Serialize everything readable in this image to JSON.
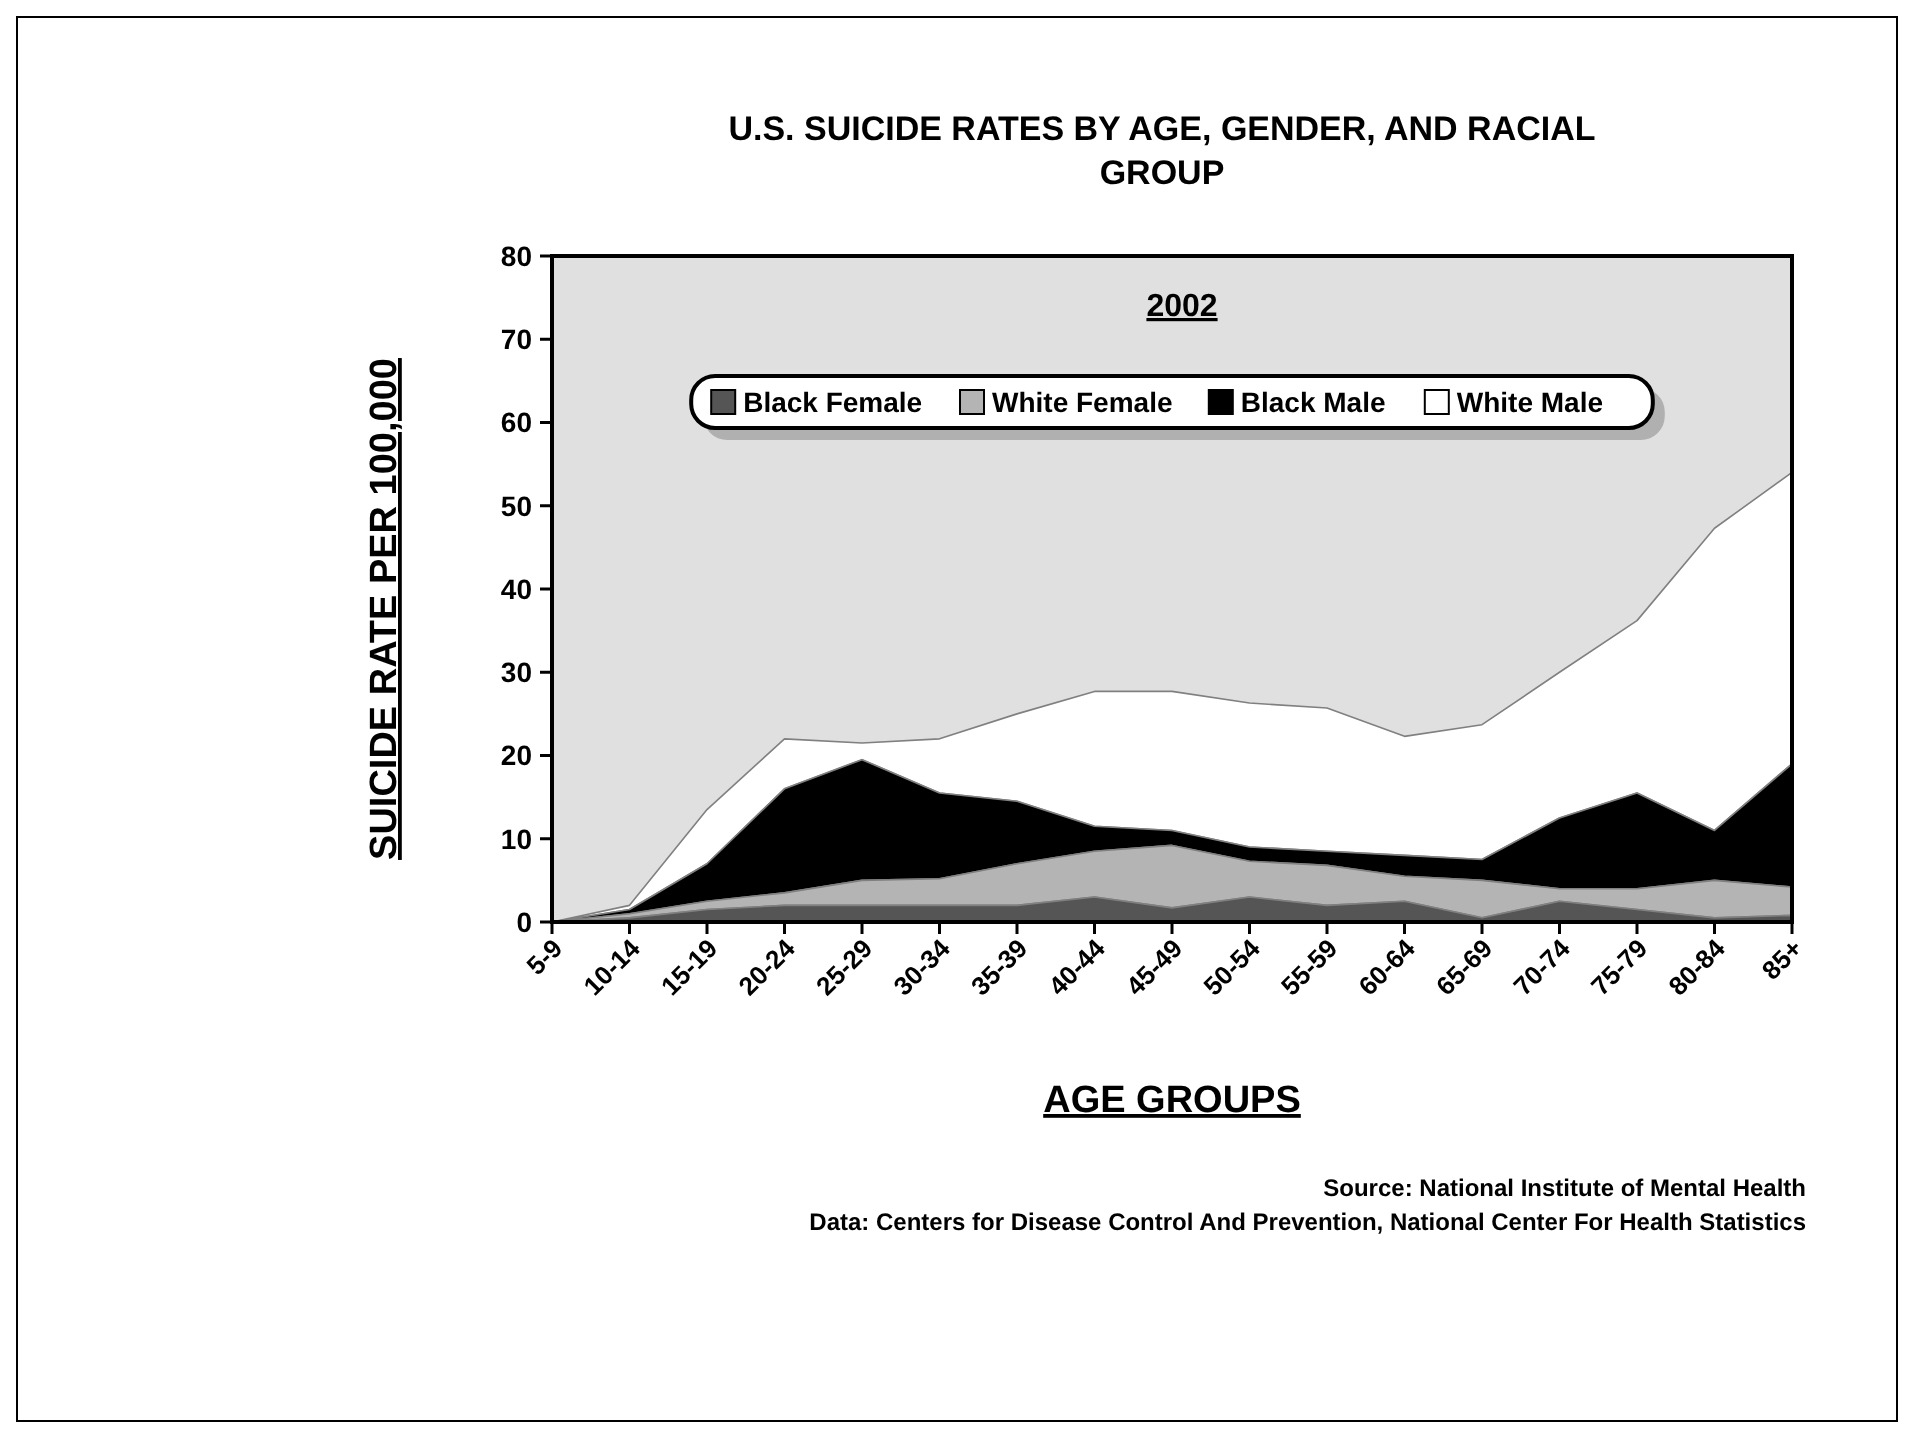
{
  "chart_data": {
    "type": "area",
    "title": "U.S. SUICIDE RATES BY AGE, GENDER, AND RACIAL GROUP",
    "subtitle": "2002",
    "xlabel": "AGE GROUPS",
    "ylabel": "SUICIDE RATE PER 100,000",
    "categories": [
      "5-9",
      "10-14",
      "15-19",
      "20-24",
      "25-29",
      "30-34",
      "35-39",
      "40-44",
      "45-49",
      "50-54",
      "55-59",
      "60-64",
      "65-69",
      "70-74",
      "75-79",
      "80-84",
      "85+"
    ],
    "stacked": true,
    "ylim": [
      0,
      80
    ],
    "yticks": [
      0,
      10,
      20,
      30,
      40,
      50,
      60,
      70,
      80
    ],
    "grid": false,
    "legend": "top",
    "series": [
      {
        "name": "Black Female",
        "color": "#555555",
        "values": [
          0,
          0.5,
          1.5,
          2,
          2,
          2,
          2,
          3,
          1.7,
          3,
          2,
          2.5,
          0.5,
          2.5,
          1.5,
          0.5,
          0.8
        ]
      },
      {
        "name": "White Female",
        "color": "#b4b4b4",
        "values": [
          0,
          0.5,
          1,
          1.5,
          3,
          3.2,
          5,
          5.5,
          7.5,
          4.3,
          4.8,
          3,
          4.5,
          1.5,
          2.5,
          4.5,
          3.4
        ]
      },
      {
        "name": "Black Male",
        "color": "#000000",
        "values": [
          0,
          0.5,
          4.5,
          12.5,
          14.5,
          10.3,
          7.5,
          3,
          1.8,
          1.7,
          1.7,
          2.5,
          2.5,
          8.5,
          11.5,
          6,
          14.8
        ]
      },
      {
        "name": "White Male",
        "color": "#ffffff",
        "values": [
          0,
          0.5,
          6.5,
          6,
          2,
          6.5,
          10.5,
          16.2,
          16.7,
          17.3,
          17.2,
          14.3,
          16.2,
          17.5,
          20.7,
          36.3,
          35
        ]
      }
    ],
    "annotations": [
      "Source: National Institute of Mental Health",
      "Data: Centers for Disease Control And Prevention, National Center For Health Statistics"
    ]
  }
}
